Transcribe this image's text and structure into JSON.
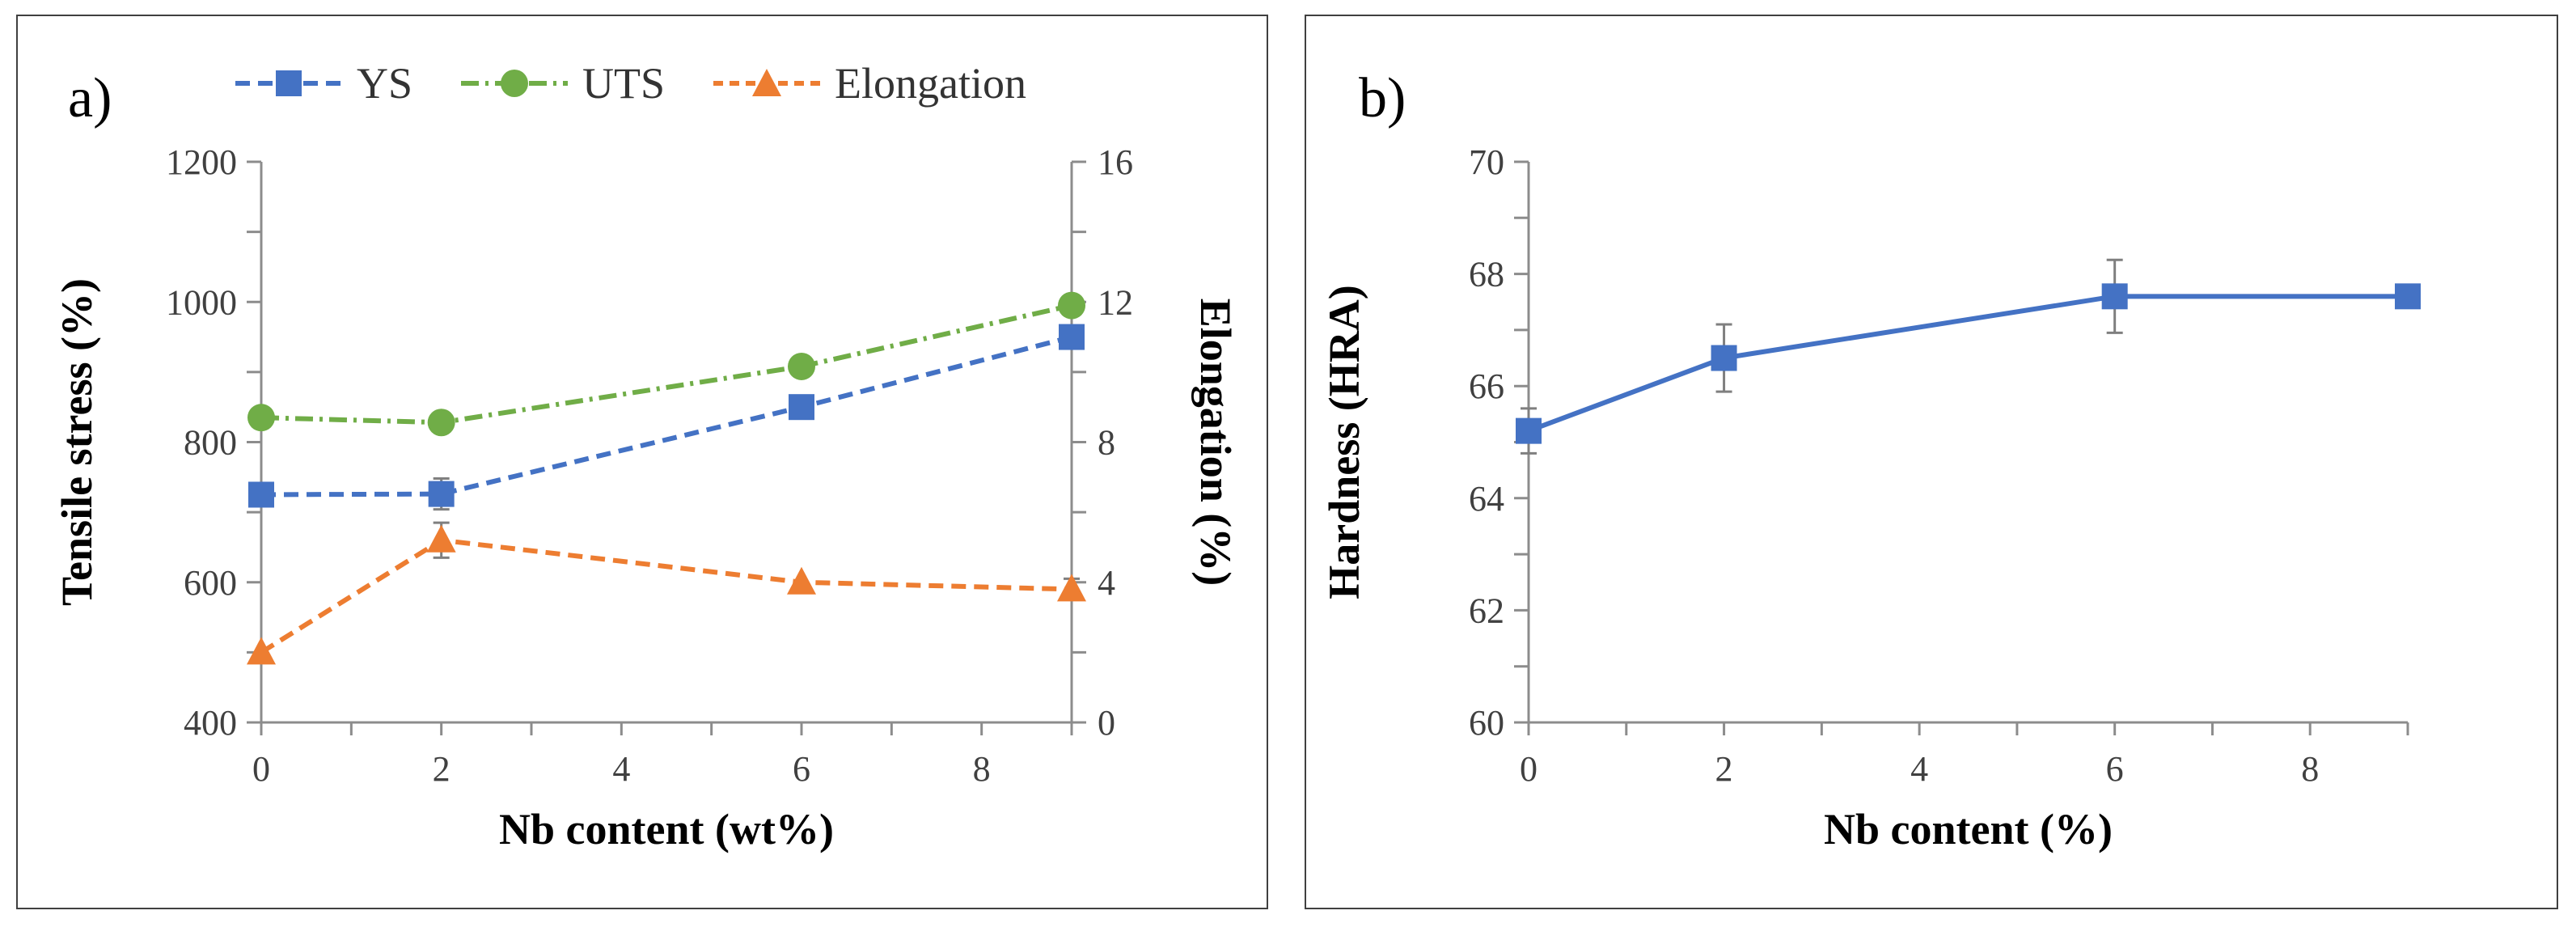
{
  "colors": {
    "ys": "#4472C4",
    "uts": "#70AD47",
    "elongation": "#ED7D31",
    "axis": "#8C8C8C",
    "text": "#404040"
  },
  "panel_a": {
    "label": "a)",
    "legend": {
      "ys": "YS",
      "uts": "UTS",
      "elongation": "Elongation"
    }
  },
  "panel_b": {
    "label": "b)"
  },
  "chart_data": [
    {
      "type": "line",
      "panel": "a)",
      "title": "",
      "xlabel": "Nb content (wt%)",
      "ylabel": "Tensile stress (%)",
      "y2label": "Elongation (%)",
      "xlim": [
        0,
        9
      ],
      "ylim": [
        400,
        1200
      ],
      "y2lim": [
        0,
        16
      ],
      "xticks": [
        "0",
        "2",
        "4",
        "6",
        "8"
      ],
      "yticks": [
        "400",
        "600",
        "800",
        "1000",
        "1200"
      ],
      "y2ticks": [
        "0",
        "4",
        "8",
        "12",
        "16"
      ],
      "x": [
        0,
        2,
        6,
        9
      ],
      "series": [
        {
          "name": "YS",
          "axis": "left",
          "marker": "square",
          "dash": "dashed",
          "values": [
            725,
            726,
            850,
            950
          ],
          "errors": [
            10,
            22,
            15,
            15
          ]
        },
        {
          "name": "UTS",
          "axis": "left",
          "marker": "circle",
          "dash": "dashdot",
          "values": [
            835,
            828,
            908,
            995
          ],
          "errors": [
            0,
            0,
            0,
            0
          ]
        },
        {
          "name": "Elongation",
          "axis": "right",
          "marker": "triangle",
          "dash": "dashed",
          "values": [
            2.0,
            5.2,
            4.0,
            3.8
          ],
          "errors": [
            0,
            0.5,
            0,
            0.3
          ]
        }
      ],
      "legend_position": "top"
    },
    {
      "type": "line",
      "panel": "b)",
      "title": "",
      "xlabel": "Nb content (%)",
      "ylabel": "Hardness (HRA)",
      "xlim": [
        0,
        9
      ],
      "ylim": [
        60,
        70
      ],
      "xticks": [
        "0",
        "2",
        "4",
        "6",
        "8"
      ],
      "yticks": [
        "60",
        "62",
        "64",
        "66",
        "68",
        "70"
      ],
      "x": [
        0,
        2,
        6,
        9
      ],
      "series": [
        {
          "name": "Hardness",
          "marker": "square",
          "dash": "solid",
          "values": [
            65.2,
            66.5,
            67.6,
            67.6
          ],
          "errors": [
            0.4,
            0.6,
            0.65,
            0.2
          ]
        }
      ]
    }
  ]
}
